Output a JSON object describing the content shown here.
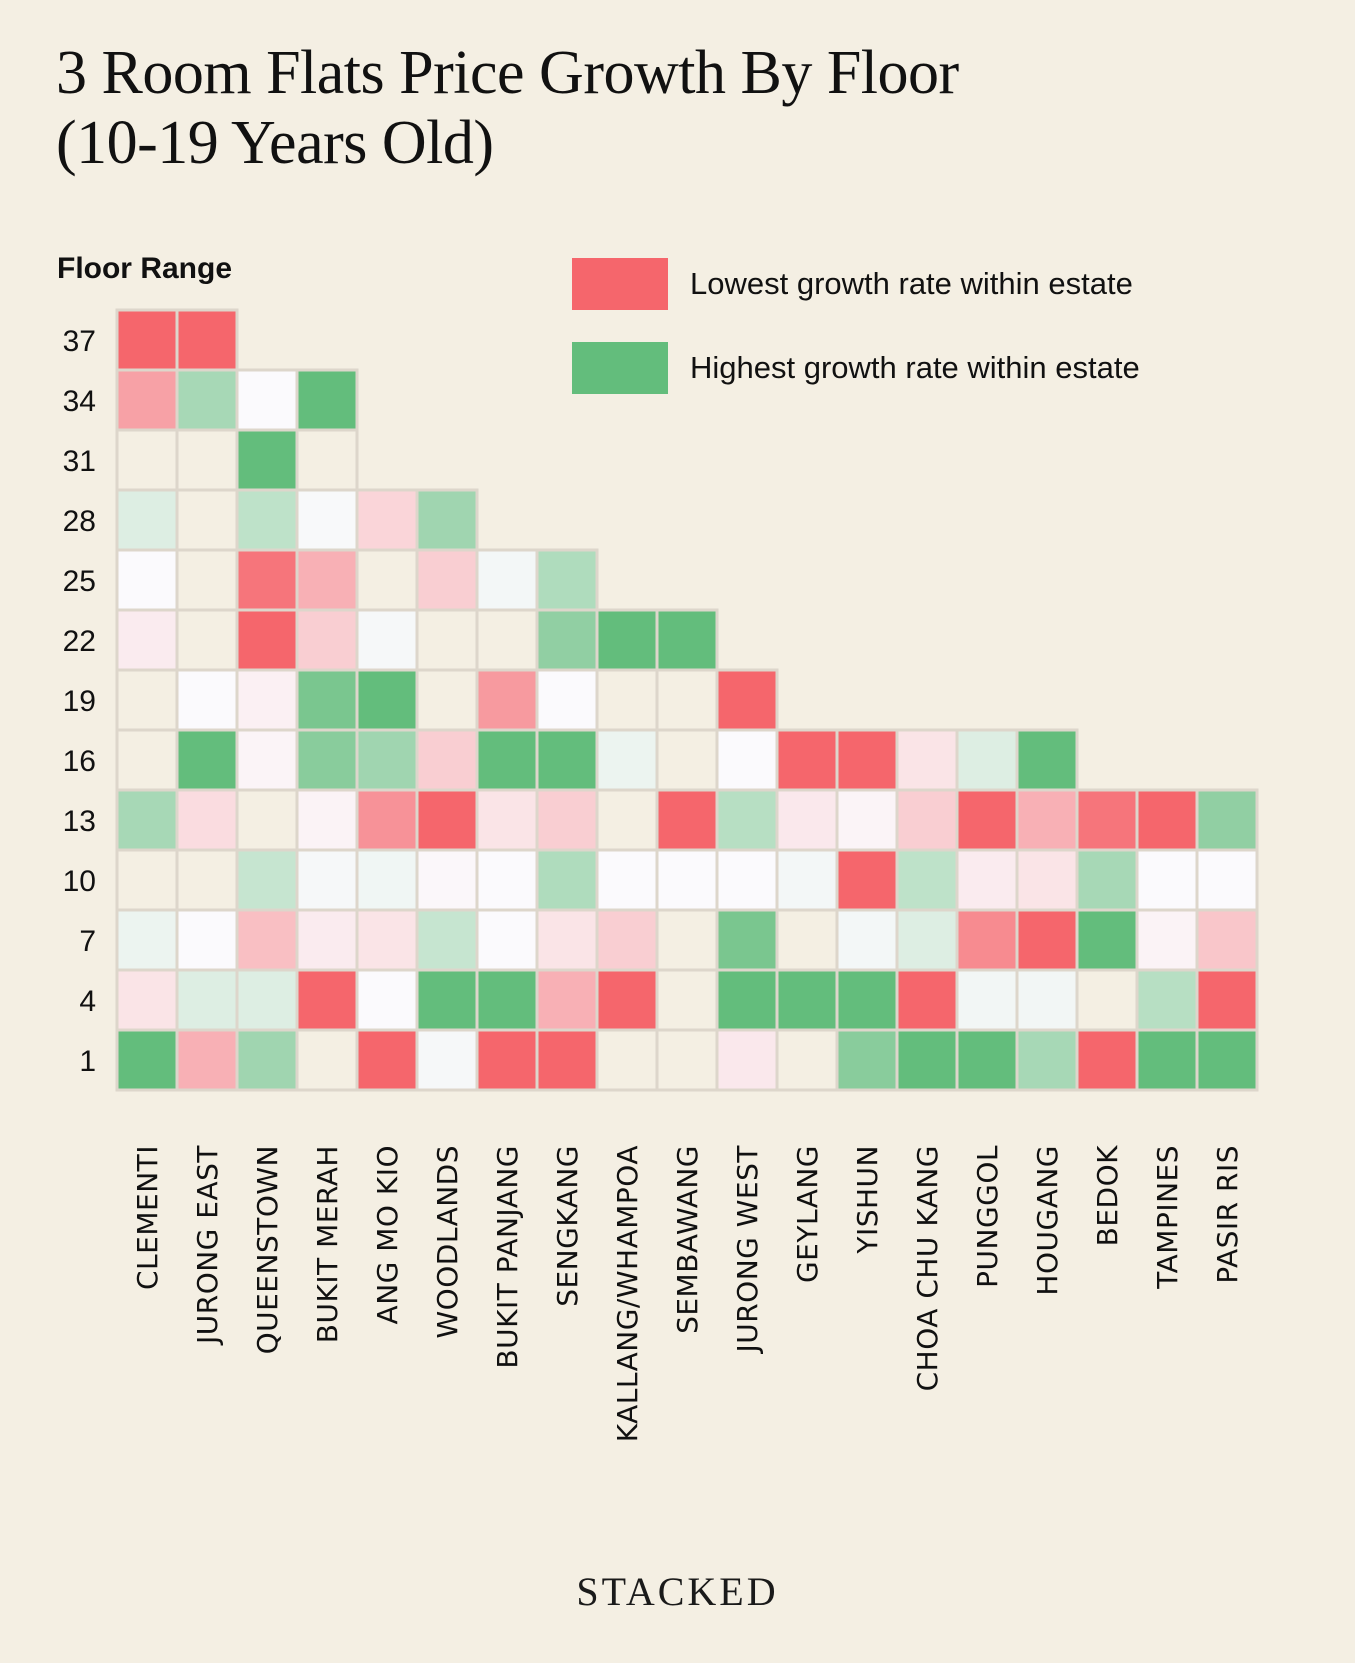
{
  "title_lines": [
    "3 Room Flats Price Growth By Floor",
    "(10-19 Years Old)"
  ],
  "footer": "STACKED",
  "chart_data": {
    "type": "heatmap",
    "title": "3 Room Flats Price Growth By Floor (10-19 Years Old)",
    "ylabel": "Floor Range",
    "xlabel": "",
    "value_scale": "relative growth rank within estate: -1 = lowest, 0 = neutral, +1 = highest; null = no data",
    "legend": {
      "position": "top-right",
      "entries": [
        {
          "label": "Lowest growth rate within estate",
          "color": "#f5666c"
        },
        {
          "label": "Highest growth rate within estate",
          "color": "#63bd7c"
        }
      ]
    },
    "colors": {
      "low": "#f5666c",
      "mid": "#fbfafd",
      "high": "#63bd7c",
      "empty": "#f4efe3",
      "grid": "#ddd6cb"
    },
    "rows": [
      "37",
      "34",
      "31",
      "28",
      "25",
      "22",
      "19",
      "16",
      "13",
      "10",
      "7",
      "4",
      "1"
    ],
    "categories": [
      "CLEMENTI",
      "JURONG EAST",
      "QUEENSTOWN",
      "BUKIT MERAH",
      "ANG MO KIO",
      "WOODLANDS",
      "BUKIT PANJANG",
      "SENGKANG",
      "KALLANG/WHAMPOA",
      "SEMBAWANG",
      "JURONG WEST",
      "GEYLANG",
      "YISHUN",
      "CHOA CHU KANG",
      "PUNGGOL",
      "HOUGANG",
      "BEDOK",
      "TAMPINES",
      "PASIR RIS"
    ],
    "column_top_floor": [
      "37",
      "37",
      "34",
      "34",
      "28",
      "28",
      "25",
      "25",
      "22",
      "22",
      "19",
      "16",
      "16",
      "16",
      "16",
      "16",
      "13",
      "13",
      "13"
    ],
    "values": [
      [
        -1.0,
        -1.0,
        null,
        null,
        null,
        null,
        null,
        null,
        null,
        null,
        null,
        null,
        null,
        null,
        null,
        null,
        null,
        null,
        null
      ],
      [
        -0.6,
        0.55,
        0.0,
        1.0,
        null,
        null,
        null,
        null,
        null,
        null,
        null,
        null,
        null,
        null,
        null,
        null,
        null,
        null,
        null
      ],
      [
        null,
        null,
        1.0,
        null,
        null,
        null,
        null,
        null,
        null,
        null,
        null,
        null,
        null,
        null,
        null,
        null,
        null,
        null,
        null
      ],
      [
        0.2,
        null,
        0.4,
        0.02,
        -0.25,
        0.6,
        null,
        null,
        null,
        null,
        null,
        null,
        null,
        null,
        null,
        null,
        null,
        null,
        null
      ],
      [
        0.0,
        null,
        -0.9,
        -0.5,
        null,
        -0.3,
        0.05,
        0.5,
        null,
        null,
        null,
        null,
        null,
        null,
        null,
        null,
        null,
        null,
        null
      ],
      [
        -0.1,
        null,
        -1.0,
        -0.3,
        0.03,
        null,
        null,
        0.7,
        1.0,
        1.0,
        null,
        null,
        null,
        null,
        null,
        null,
        null,
        null,
        null
      ],
      [
        null,
        0.0,
        -0.07,
        0.85,
        1.0,
        null,
        -0.65,
        0.0,
        null,
        null,
        -1.0,
        null,
        null,
        null,
        null,
        null,
        null,
        null,
        null
      ],
      [
        null,
        1.0,
        -0.04,
        0.75,
        0.6,
        -0.3,
        1.0,
        1.0,
        0.1,
        null,
        0.0,
        -1.0,
        -1.0,
        -0.15,
        0.2,
        1.0,
        null,
        null,
        null
      ],
      [
        0.55,
        -0.2,
        null,
        -0.05,
        -0.7,
        -1.0,
        -0.15,
        -0.3,
        null,
        -1.0,
        0.45,
        -0.12,
        -0.04,
        -0.3,
        -1.0,
        -0.5,
        -0.9,
        -1.0,
        0.7
      ],
      [
        null,
        null,
        0.35,
        0.03,
        0.07,
        -0.02,
        0.0,
        0.5,
        0.0,
        0.0,
        0.0,
        0.05,
        -1.0,
        0.4,
        -0.1,
        -0.15,
        0.55,
        0.0,
        0.0
      ],
      [
        0.1,
        0.0,
        -0.4,
        -0.1,
        -0.15,
        0.35,
        0.0,
        -0.15,
        -0.3,
        null,
        0.85,
        null,
        0.05,
        0.2,
        -0.75,
        -1.0,
        1.0,
        -0.05,
        -0.35
      ],
      [
        -0.15,
        0.2,
        0.2,
        -1.0,
        0.0,
        1.0,
        1.0,
        -0.5,
        -1.0,
        null,
        1.0,
        1.0,
        1.0,
        -1.0,
        0.06,
        0.06,
        null,
        0.45,
        -1.0
      ],
      [
        1.0,
        -0.5,
        0.6,
        null,
        -1.0,
        0.03,
        -1.0,
        -1.0,
        null,
        null,
        -0.12,
        null,
        0.75,
        1.0,
        1.0,
        0.55,
        -1.0,
        1.0,
        1.0
      ]
    ]
  }
}
